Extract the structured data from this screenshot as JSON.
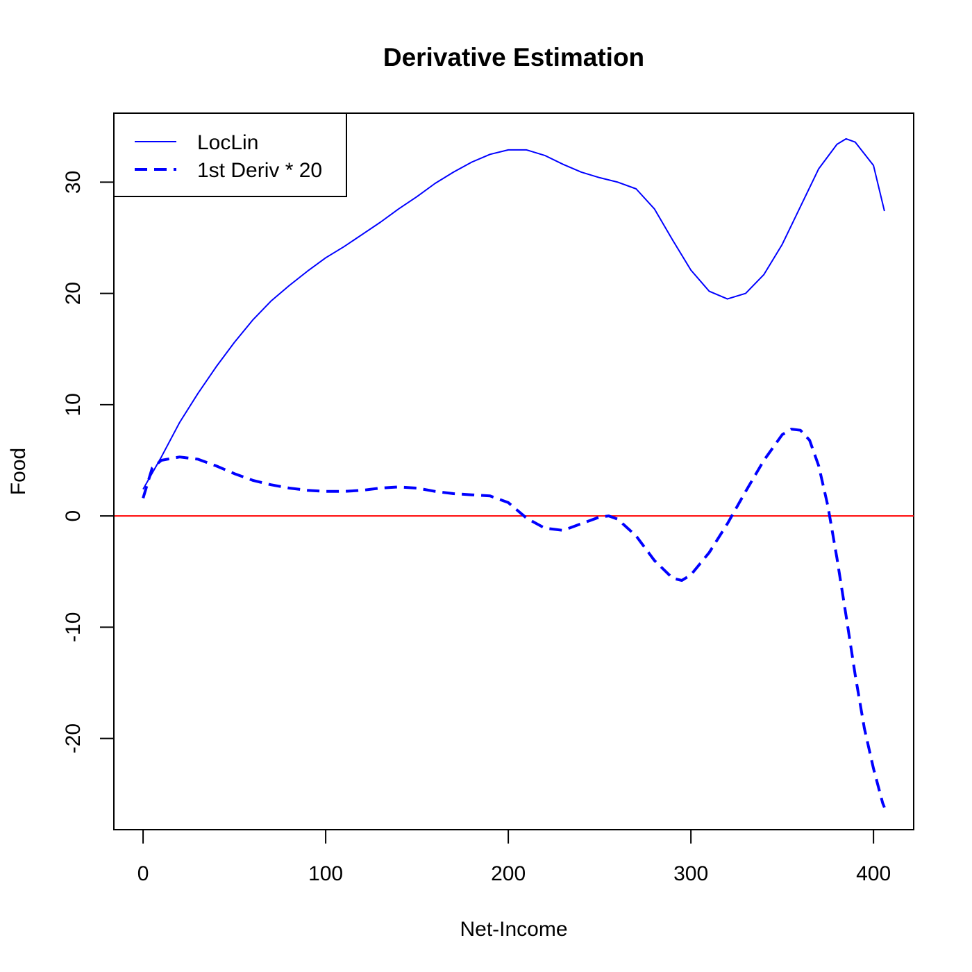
{
  "chart_data": {
    "type": "line",
    "title": "Derivative Estimation",
    "xlabel": "Net-Income",
    "ylabel": "Food",
    "xlim": [
      -16,
      422
    ],
    "ylim": [
      -28.2,
      36.2
    ],
    "x_ticks": [
      0,
      100,
      200,
      300,
      400
    ],
    "y_ticks": [
      -20,
      -10,
      0,
      10,
      20,
      30
    ],
    "grid": false,
    "legend_position": "top-left",
    "reference_line": {
      "y": 0,
      "color": "#ff0000"
    },
    "series": [
      {
        "name": "LocLin",
        "color": "#0000ff",
        "style": "solid",
        "points": [
          [
            0,
            2.4
          ],
          [
            10,
            5.3
          ],
          [
            20,
            8.4
          ],
          [
            30,
            11.0
          ],
          [
            40,
            13.4
          ],
          [
            50,
            15.6
          ],
          [
            60,
            17.6
          ],
          [
            70,
            19.3
          ],
          [
            80,
            20.7
          ],
          [
            90,
            22.0
          ],
          [
            100,
            23.2
          ],
          [
            110,
            24.2
          ],
          [
            120,
            25.3
          ],
          [
            130,
            26.4
          ],
          [
            140,
            27.6
          ],
          [
            150,
            28.7
          ],
          [
            160,
            29.9
          ],
          [
            170,
            30.9
          ],
          [
            180,
            31.8
          ],
          [
            190,
            32.5
          ],
          [
            200,
            32.9
          ],
          [
            210,
            32.9
          ],
          [
            220,
            32.4
          ],
          [
            230,
            31.6
          ],
          [
            240,
            30.9
          ],
          [
            250,
            30.4
          ],
          [
            260,
            30.0
          ],
          [
            270,
            29.4
          ],
          [
            280,
            27.6
          ],
          [
            290,
            24.8
          ],
          [
            300,
            22.1
          ],
          [
            310,
            20.2
          ],
          [
            320,
            19.5
          ],
          [
            330,
            20.0
          ],
          [
            340,
            21.7
          ],
          [
            350,
            24.4
          ],
          [
            360,
            27.8
          ],
          [
            370,
            31.2
          ],
          [
            380,
            33.4
          ],
          [
            385,
            33.9
          ],
          [
            390,
            33.6
          ],
          [
            400,
            31.5
          ],
          [
            406,
            27.4
          ]
        ]
      },
      {
        "name": "1st Deriv * 20",
        "color": "#0000ff",
        "style": "dashed",
        "points": [
          [
            0,
            1.6
          ],
          [
            5,
            4.3
          ],
          [
            10,
            5.0
          ],
          [
            20,
            5.3
          ],
          [
            30,
            5.1
          ],
          [
            40,
            4.5
          ],
          [
            50,
            3.8
          ],
          [
            60,
            3.2
          ],
          [
            70,
            2.8
          ],
          [
            80,
            2.5
          ],
          [
            90,
            2.3
          ],
          [
            100,
            2.2
          ],
          [
            110,
            2.2
          ],
          [
            120,
            2.3
          ],
          [
            130,
            2.5
          ],
          [
            140,
            2.6
          ],
          [
            150,
            2.5
          ],
          [
            160,
            2.2
          ],
          [
            170,
            2.0
          ],
          [
            180,
            1.9
          ],
          [
            190,
            1.8
          ],
          [
            200,
            1.2
          ],
          [
            210,
            -0.2
          ],
          [
            220,
            -1.1
          ],
          [
            230,
            -1.3
          ],
          [
            240,
            -0.7
          ],
          [
            250,
            -0.1
          ],
          [
            255,
            0.0
          ],
          [
            260,
            -0.3
          ],
          [
            270,
            -1.8
          ],
          [
            280,
            -4.0
          ],
          [
            290,
            -5.6
          ],
          [
            295,
            -5.8
          ],
          [
            300,
            -5.3
          ],
          [
            310,
            -3.3
          ],
          [
            320,
            -0.7
          ],
          [
            330,
            2.2
          ],
          [
            340,
            5.0
          ],
          [
            350,
            7.3
          ],
          [
            355,
            7.8
          ],
          [
            360,
            7.7
          ],
          [
            365,
            6.8
          ],
          [
            370,
            4.5
          ],
          [
            375,
            0.9
          ],
          [
            380,
            -3.8
          ],
          [
            385,
            -9.0
          ],
          [
            390,
            -14.3
          ],
          [
            395,
            -19.1
          ],
          [
            400,
            -22.7
          ],
          [
            405,
            -25.8
          ],
          [
            406,
            -26.2
          ]
        ]
      }
    ]
  }
}
